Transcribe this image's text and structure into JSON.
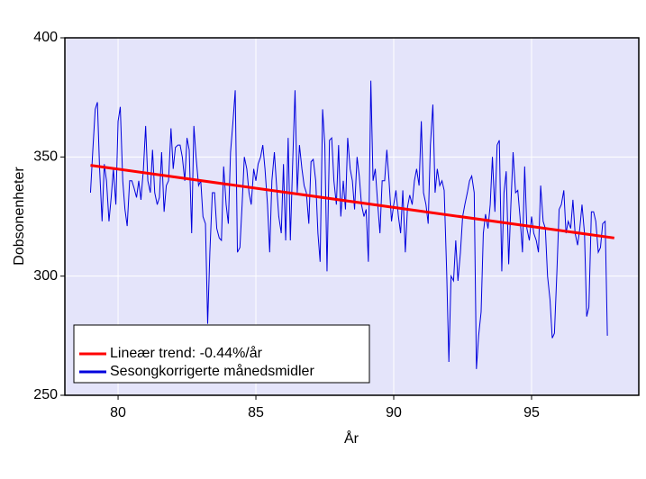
{
  "chart_data": {
    "type": "line",
    "xlabel": "År",
    "ylabel": "Dobsonenheter",
    "xlim": [
      78.07,
      98.89
    ],
    "ylim": [
      250,
      400
    ],
    "xticks": [
      80,
      85,
      90,
      95
    ],
    "yticks": [
      250,
      300,
      350,
      400
    ],
    "grid": true,
    "grid_color": "#ffffff",
    "background": "#e4e4fa",
    "legend": "lower left",
    "series": [
      {
        "name": "Lineær trend: -0.44%/år",
        "color": "#ff0000",
        "x": [
          79.0,
          98.0
        ],
        "values": [
          346.5,
          316
        ]
      },
      {
        "name": "Sesongkorrigerte månedsmidler",
        "color": "#0000dd",
        "x": [
          79.0,
          79.08,
          79.17,
          79.25,
          79.33,
          79.42,
          79.5,
          79.58,
          79.67,
          79.75,
          79.83,
          79.92,
          80.0,
          80.08,
          80.17,
          80.25,
          80.33,
          80.42,
          80.5,
          80.58,
          80.67,
          80.75,
          80.83,
          80.92,
          81.0,
          81.08,
          81.17,
          81.25,
          81.33,
          81.42,
          81.5,
          81.58,
          81.67,
          81.75,
          81.83,
          81.92,
          82.0,
          82.08,
          82.17,
          82.25,
          82.33,
          82.42,
          82.5,
          82.58,
          82.67,
          82.75,
          82.83,
          82.92,
          83.0,
          83.08,
          83.17,
          83.25,
          83.33,
          83.42,
          83.5,
          83.58,
          83.67,
          83.75,
          83.83,
          83.92,
          84.0,
          84.08,
          84.17,
          84.25,
          84.33,
          84.42,
          84.5,
          84.58,
          84.67,
          84.75,
          84.83,
          84.92,
          85.0,
          85.08,
          85.17,
          85.25,
          85.33,
          85.42,
          85.5,
          85.58,
          85.67,
          85.75,
          85.83,
          85.92,
          86.0,
          86.08,
          86.17,
          86.25,
          86.33,
          86.42,
          86.5,
          86.58,
          86.67,
          86.75,
          86.83,
          86.92,
          87.0,
          87.08,
          87.17,
          87.25,
          87.33,
          87.42,
          87.5,
          87.58,
          87.67,
          87.75,
          87.83,
          87.92,
          88.0,
          88.08,
          88.17,
          88.25,
          88.33,
          88.42,
          88.5,
          88.58,
          88.67,
          88.75,
          88.83,
          88.92,
          89.0,
          89.08,
          89.17,
          89.25,
          89.33,
          89.42,
          89.5,
          89.58,
          89.67,
          89.75,
          89.83,
          89.92,
          90.0,
          90.08,
          90.17,
          90.25,
          90.33,
          90.42,
          90.5,
          90.58,
          90.67,
          90.75,
          90.83,
          90.92,
          91.0,
          91.08,
          91.17,
          91.25,
          91.33,
          91.42,
          91.5,
          91.58,
          91.67,
          91.75,
          91.83,
          91.92,
          92.0,
          92.08,
          92.17,
          92.25,
          92.33,
          92.42,
          92.5,
          92.58,
          92.67,
          92.75,
          92.83,
          92.92,
          93.0,
          93.08,
          93.17,
          93.25,
          93.33,
          93.42,
          93.5,
          93.58,
          93.67,
          93.75,
          93.83,
          93.92,
          94.0,
          94.08,
          94.17,
          94.25,
          94.33,
          94.42,
          94.5,
          94.58,
          94.67,
          94.75,
          94.83,
          94.92,
          95.0,
          95.08,
          95.17,
          95.25,
          95.33,
          95.42,
          95.5,
          95.58,
          95.67,
          95.75,
          95.83,
          95.92,
          96.0,
          96.08,
          96.17,
          96.25,
          96.33,
          96.42,
          96.5,
          96.58,
          96.67,
          96.75,
          96.83,
          96.92,
          97.0,
          97.08,
          97.17,
          97.25,
          97.33,
          97.42,
          97.5,
          97.58,
          97.67,
          97.75
        ],
        "values": [
          335,
          352,
          370,
          373,
          345,
          323,
          347,
          340,
          323,
          333,
          345,
          330,
          365,
          371,
          340,
          328,
          321,
          340,
          340,
          337,
          333,
          340,
          332,
          345,
          363,
          340,
          335,
          353,
          335,
          330,
          333,
          352,
          327,
          338,
          340,
          362,
          345,
          354,
          355,
          355,
          350,
          340,
          358,
          353,
          318,
          363,
          350,
          338,
          340,
          325,
          322,
          280,
          310,
          335,
          335,
          320,
          316,
          315,
          346,
          330,
          322,
          352,
          365,
          378,
          310,
          312,
          330,
          350,
          345,
          335,
          330,
          345,
          340,
          347,
          350,
          355,
          345,
          330,
          310,
          340,
          352,
          338,
          325,
          318,
          347,
          315,
          358,
          315,
          346,
          378,
          335,
          355,
          345,
          338,
          335,
          322,
          348,
          349,
          340,
          318,
          306,
          370,
          355,
          302,
          357,
          358,
          340,
          330,
          355,
          325,
          340,
          328,
          358,
          345,
          340,
          328,
          350,
          342,
          330,
          325,
          328,
          306,
          382,
          340,
          345,
          330,
          318,
          340,
          340,
          353,
          340,
          323,
          330,
          336,
          325,
          318,
          336,
          310,
          329,
          334,
          330,
          340,
          345,
          338,
          365,
          335,
          330,
          322,
          355,
          372,
          335,
          345,
          338,
          340,
          336,
          302,
          264,
          300,
          298,
          315,
          298,
          310,
          325,
          330,
          335,
          340,
          342,
          335,
          261,
          275,
          285,
          318,
          326,
          320,
          330,
          350,
          327,
          355,
          357,
          302,
          335,
          344,
          305,
          330,
          352,
          335,
          336,
          325,
          310,
          346,
          320,
          315,
          325,
          318,
          315,
          310,
          338,
          323,
          320,
          300,
          290,
          274,
          276,
          302,
          328,
          330,
          336,
          318,
          323,
          320,
          332,
          318,
          313,
          320,
          330,
          318,
          283,
          287,
          327,
          327,
          323,
          310,
          312,
          322,
          323,
          275
        ]
      }
    ]
  }
}
